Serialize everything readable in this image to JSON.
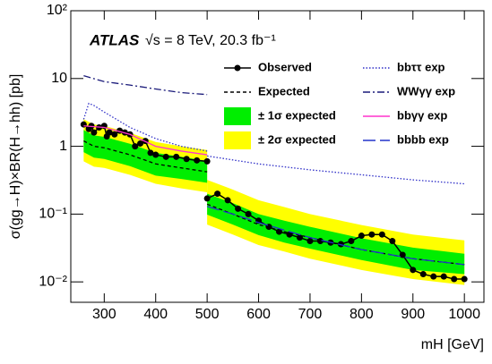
{
  "chart_data": {
    "type": "line",
    "annotation": "ATLAS",
    "subtitle": "√s = 8 TeV, 20.3 fb⁻¹",
    "xlabel": "mH [GeV]",
    "ylabel": "σ(gg→H)×BR(H→hh) [pb]",
    "xlim": [
      235,
      1038
    ],
    "xticks": [
      300,
      400,
      500,
      600,
      700,
      800,
      900,
      1000
    ],
    "ylim": [
      0.005,
      100
    ],
    "yticks": [
      {
        "value": 0.01,
        "label": "10⁻²"
      },
      {
        "value": 0.1,
        "label": "10⁻¹"
      },
      1,
      10,
      {
        "value": 100,
        "label": "10²"
      }
    ],
    "log_y": true,
    "series": [
      {
        "name": "Observed",
        "kind": "line",
        "style": "solid",
        "markers": true,
        "color": "#000000",
        "x": [
          260,
          270,
          275,
          280,
          290,
          300,
          305,
          310,
          320,
          330,
          340,
          350,
          360,
          370,
          380,
          390,
          400,
          420,
          440,
          460,
          480,
          500,
          null,
          500,
          520,
          540,
          560,
          580,
          600,
          620,
          640,
          660,
          680,
          700,
          720,
          740,
          760,
          780,
          800,
          820,
          840,
          860,
          880,
          900,
          920,
          940,
          960,
          980,
          1000
        ],
        "values": [
          2.1,
          1.8,
          2.0,
          1.6,
          1.9,
          2.0,
          1.4,
          1.6,
          1.5,
          1.7,
          1.6,
          1.5,
          1.0,
          1.1,
          1.2,
          0.8,
          0.75,
          0.7,
          0.7,
          0.65,
          0.62,
          0.6,
          null,
          0.17,
          0.2,
          0.16,
          0.12,
          0.1,
          0.08,
          0.065,
          0.055,
          0.05,
          0.045,
          0.04,
          0.04,
          0.038,
          0.036,
          0.04,
          0.048,
          0.05,
          0.05,
          0.04,
          0.025,
          0.015,
          0.013,
          0.012,
          0.012,
          0.011,
          0.011
        ]
      },
      {
        "name": "Expected",
        "kind": "line",
        "style": "dash",
        "color": "#000000",
        "x": [
          260,
          280,
          300,
          350,
          400,
          450,
          500,
          null,
          500,
          550,
          600,
          650,
          700,
          800,
          900,
          1000
        ],
        "values": [
          1.2,
          1.0,
          0.95,
          0.75,
          0.55,
          0.48,
          0.42,
          null,
          0.14,
          0.1,
          0.07,
          0.055,
          0.045,
          0.03,
          0.022,
          0.018
        ]
      },
      {
        "name": "± 1σ expected",
        "kind": "band",
        "color": "#00ee00",
        "x": [
          260,
          280,
          300,
          350,
          400,
          450,
          500,
          null,
          500,
          550,
          600,
          650,
          700,
          800,
          900,
          1000
        ],
        "lower": [
          0.82,
          0.68,
          0.65,
          0.51,
          0.37,
          0.33,
          0.29,
          null,
          0.098,
          0.07,
          0.049,
          0.038,
          0.031,
          0.021,
          0.015,
          0.013
        ],
        "upper": [
          1.74,
          1.45,
          1.38,
          1.09,
          0.8,
          0.7,
          0.61,
          null,
          0.2,
          0.145,
          0.1,
          0.08,
          0.065,
          0.044,
          0.032,
          0.026
        ]
      },
      {
        "name": "± 2σ expected",
        "kind": "band",
        "color": "#ffff00",
        "x": [
          260,
          280,
          300,
          350,
          400,
          450,
          500,
          null,
          500,
          550,
          600,
          650,
          700,
          800,
          900,
          1000
        ],
        "lower": [
          0.6,
          0.5,
          0.48,
          0.38,
          0.28,
          0.24,
          0.21,
          null,
          0.07,
          0.05,
          0.035,
          0.028,
          0.022,
          0.015,
          0.011,
          0.009
        ],
        "upper": [
          2.5,
          2.1,
          2.0,
          1.58,
          1.16,
          1.0,
          0.88,
          null,
          0.32,
          0.23,
          0.16,
          0.127,
          0.1,
          0.069,
          0.05,
          0.041
        ]
      },
      {
        "name": "bbττ exp",
        "kind": "line",
        "style": "dot",
        "color": "#3030c8",
        "x": [
          260,
          270,
          280,
          300,
          350,
          400,
          450,
          500,
          null,
          500,
          600,
          700,
          800,
          900,
          1000
        ],
        "values": [
          2.5,
          4.3,
          4.0,
          3.2,
          1.9,
          1.3,
          1.0,
          0.85,
          null,
          0.72,
          0.55,
          0.45,
          0.38,
          0.32,
          0.28
        ]
      },
      {
        "name": "WWγγ exp",
        "kind": "line",
        "style": "dashdot",
        "color": "#1a1a7a",
        "x": [
          260,
          300,
          350,
          400,
          450,
          500
        ],
        "values": [
          11,
          9,
          8,
          7,
          6.2,
          5.8
        ]
      },
      {
        "name": "bbγγ exp",
        "kind": "line",
        "style": "solid",
        "color": "#ff33cc",
        "x": [
          260,
          300,
          350,
          400,
          450,
          500
        ],
        "values": [
          2.0,
          1.9,
          1.5,
          1.0,
          0.85,
          0.75
        ]
      },
      {
        "name": "bbbb exp",
        "kind": "line",
        "style": "longdash",
        "color": "#2233cc",
        "x": [
          500,
          550,
          600,
          700,
          800,
          900,
          1000
        ],
        "values": [
          0.13,
          0.1,
          0.075,
          0.045,
          0.03,
          0.022,
          0.018
        ]
      }
    ]
  }
}
